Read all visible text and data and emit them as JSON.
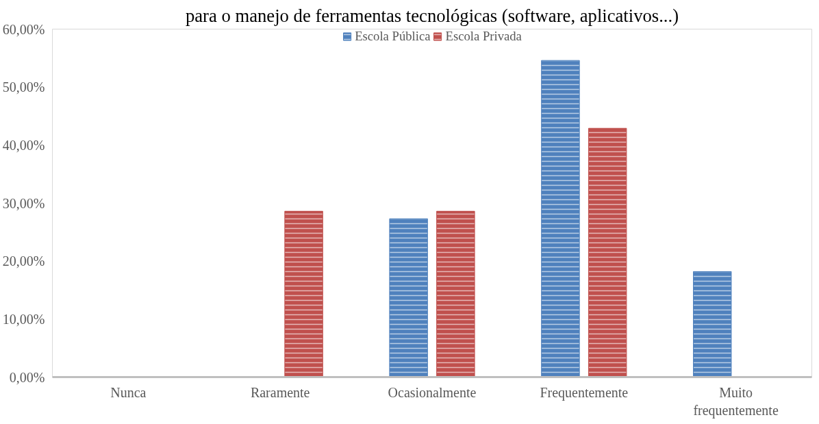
{
  "chart_data": {
    "type": "bar",
    "title": "para o manejo de ferramentas tecnológicas (software, aplicativos...)",
    "categories": [
      "Nunca",
      "Raramente",
      "Ocasionalmente",
      "Frequentemente",
      "Muito frequentemente"
    ],
    "series": [
      {
        "name": "Escola Pública",
        "color": "#4f81bd",
        "values": [
          0,
          0,
          27.3,
          54.6,
          18.2
        ]
      },
      {
        "name": "Escola Privada",
        "color": "#c0504d",
        "values": [
          0,
          28.6,
          28.6,
          42.9,
          0
        ]
      }
    ],
    "ylim": [
      0,
      60
    ],
    "yticks": [
      {
        "value": 0,
        "label": "0,00%"
      },
      {
        "value": 10,
        "label": "10,00%"
      },
      {
        "value": 20,
        "label": "20,00%"
      },
      {
        "value": 30,
        "label": "30,00%"
      },
      {
        "value": 40,
        "label": "40,00%"
      },
      {
        "value": 50,
        "label": "50,00%"
      },
      {
        "value": 60,
        "label": "60,00%"
      }
    ],
    "grid": false,
    "legend": "top"
  }
}
